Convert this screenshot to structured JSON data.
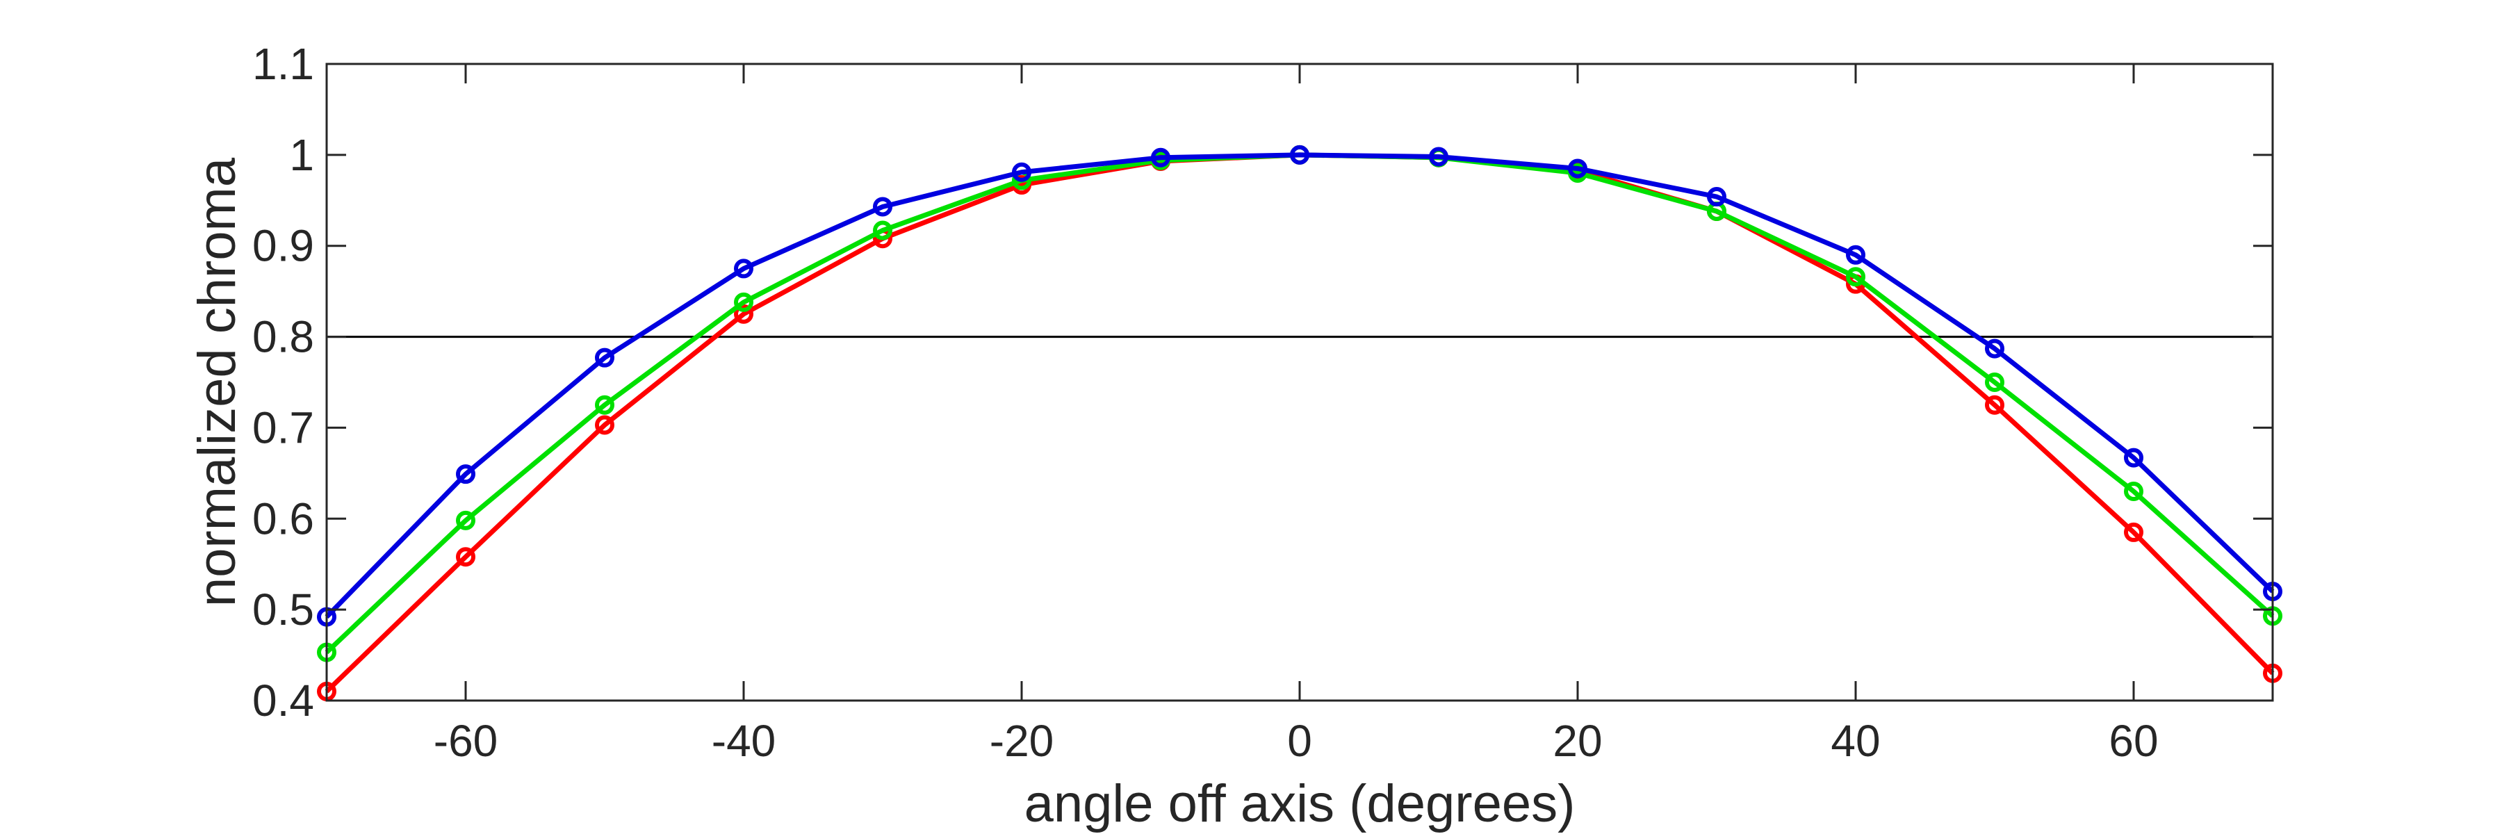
{
  "chart_data": {
    "type": "line",
    "xlabel": "angle off axis (degrees)",
    "ylabel": "normalized chroma",
    "xlim": [
      -70,
      70
    ],
    "ylim": [
      0.4,
      1.1
    ],
    "xticks": [
      -60,
      -40,
      -20,
      0,
      20,
      40,
      60
    ],
    "xtick_labels": [
      "-60",
      "-40",
      "-20",
      "0",
      "20",
      "40",
      "60"
    ],
    "yticks": [
      0.4,
      0.5,
      0.6,
      0.7,
      0.8,
      0.9,
      1.0,
      1.1
    ],
    "ytick_labels": [
      "0.4",
      "0.5",
      "0.6",
      "0.7",
      "0.8",
      "0.9",
      "1",
      "1.1"
    ],
    "grid": false,
    "legend": "none",
    "reference_line": {
      "y": 0.8,
      "color": "#000000"
    },
    "x": [
      -70,
      -60,
      -50,
      -40,
      -30,
      -20,
      -10,
      0,
      10,
      20,
      30,
      40,
      50,
      60,
      70
    ],
    "series": [
      {
        "color": "#ff0000",
        "values": [
          0.41,
          0.558,
          0.703,
          0.825,
          0.908,
          0.967,
          0.993,
          1.0,
          0.997,
          0.983,
          0.938,
          0.858,
          0.725,
          0.585,
          0.43
        ]
      },
      {
        "color": "#00e000",
        "values": [
          0.453,
          0.598,
          0.725,
          0.838,
          0.917,
          0.972,
          0.994,
          1.0,
          0.997,
          0.98,
          0.938,
          0.866,
          0.75,
          0.63,
          0.493
        ]
      },
      {
        "color": "#0000e0",
        "values": [
          0.492,
          0.649,
          0.777,
          0.875,
          0.943,
          0.981,
          0.997,
          1.0,
          0.998,
          0.985,
          0.954,
          0.89,
          0.787,
          0.667,
          0.52
        ]
      }
    ]
  }
}
